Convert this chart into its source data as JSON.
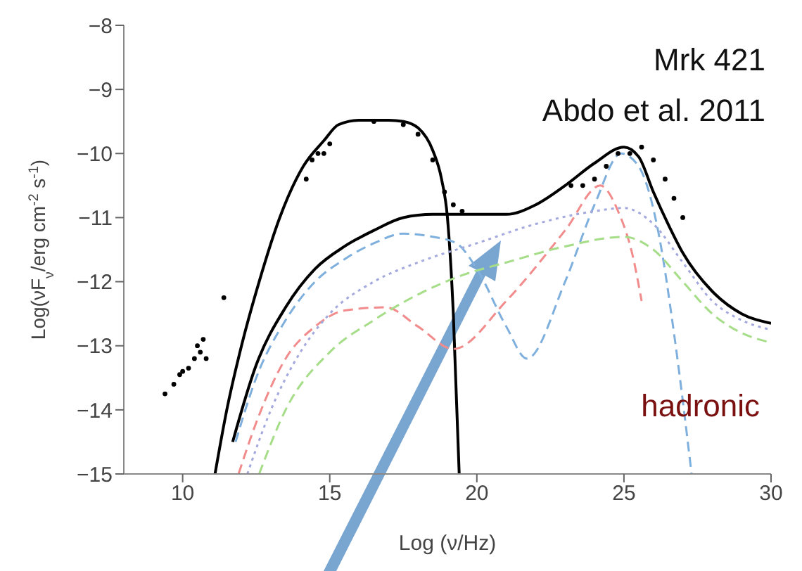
{
  "chart_data": {
    "type": "line",
    "xlabel": "Log (ν/Hz)",
    "ylabel": "Log(νF$_{ν}$/erg cm$^{-2}$ s$^{-1}$)",
    "xlim": [
      8,
      30
    ],
    "ylim": [
      -15,
      -8
    ],
    "xticks": [
      10,
      15,
      20,
      25,
      30
    ],
    "yticks": [
      -15,
      -14,
      -13,
      -12,
      -11,
      -10,
      -9,
      -8
    ],
    "annotations": [
      "Mrk 421",
      "Abdo et al. 2011",
      "hadronic"
    ],
    "series": [
      {
        "color": "#000000",
        "line_style": "solid",
        "x": [
          11.1,
          11.5,
          12,
          12.6,
          13.3,
          14.1,
          14.8,
          15.3,
          16,
          17,
          17.5,
          18,
          18.5,
          18.8,
          19,
          19.2,
          19.4
        ],
        "values": [
          -15,
          -14,
          -13,
          -12,
          -11,
          -10.2,
          -9.8,
          -9.55,
          -9.48,
          -9.48,
          -9.5,
          -9.6,
          -9.95,
          -10.4,
          -11,
          -12.5,
          -15
        ]
      },
      {
        "color": "#000000",
        "line_style": "solid",
        "x": [
          11.7,
          12.5,
          13.5,
          14.5,
          15.5,
          16.5,
          17.5,
          18.5,
          20,
          21,
          22,
          23,
          24,
          25,
          25.5,
          26,
          26.5,
          27,
          28,
          29,
          30
        ],
        "values": [
          -14.5,
          -13.3,
          -12.4,
          -11.8,
          -11.45,
          -11.2,
          -11,
          -10.95,
          -10.95,
          -10.95,
          -10.8,
          -10.5,
          -10.15,
          -9.9,
          -10.05,
          -10.6,
          -11.1,
          -11.55,
          -12.15,
          -12.5,
          -12.65
        ]
      },
      {
        "color": "#7fb0dd",
        "line_style": "dashed",
        "x": [
          11.8,
          12.5,
          13.5,
          14.5,
          15.5,
          16.5,
          17.5,
          18.5,
          19.3,
          20,
          21,
          21.7,
          23,
          24,
          24.9,
          25.5,
          26.2,
          26.7,
          27.3
        ],
        "values": [
          -14.5,
          -13.5,
          -12.6,
          -12,
          -11.65,
          -11.4,
          -11.25,
          -11.3,
          -11.4,
          -11.8,
          -12.7,
          -13.2,
          -12,
          -10.8,
          -10,
          -10.2,
          -11.3,
          -12.8,
          -15
        ]
      },
      {
        "color": "#f28c8c",
        "line_style": "dashed",
        "x": [
          11.9,
          12.5,
          13.5,
          14.5,
          15.5,
          16.9,
          18,
          19.2,
          21,
          23,
          24.2,
          24.8,
          25.3,
          25.6
        ],
        "values": [
          -15,
          -14.2,
          -13.2,
          -12.7,
          -12.45,
          -12.4,
          -12.7,
          -13.05,
          -12.3,
          -11.2,
          -10.5,
          -10.9,
          -11.6,
          -12.3
        ]
      },
      {
        "color": "#a3a8dd",
        "line_style": "dotted",
        "x": [
          12.2,
          13,
          14,
          15,
          16.5,
          18,
          20,
          22,
          24,
          25,
          26,
          27,
          28,
          29,
          30
        ],
        "values": [
          -15,
          -14,
          -13.1,
          -12.5,
          -12,
          -11.7,
          -11.4,
          -11.1,
          -10.9,
          -10.85,
          -11.1,
          -11.7,
          -12.3,
          -12.6,
          -12.75
        ]
      },
      {
        "color": "#a6dd88",
        "line_style": "dashed",
        "x": [
          12.6,
          13.5,
          15,
          16.5,
          18,
          19.5,
          21,
          23,
          25,
          26,
          27,
          28,
          29,
          30
        ],
        "values": [
          -15,
          -14,
          -13.1,
          -12.6,
          -12.2,
          -11.9,
          -11.7,
          -11.45,
          -11.3,
          -11.5,
          -12,
          -12.5,
          -12.8,
          -12.95
        ]
      },
      {
        "type": "scatter",
        "color": "#000000",
        "marker": "circle",
        "x": [
          9.4,
          9.7,
          9.9,
          10,
          10.2,
          10.4,
          10.5,
          10.6,
          10.7,
          10.8,
          11.4,
          14.2,
          14.4,
          14.6,
          14.8,
          15,
          16.5,
          17.5,
          18,
          18.5,
          18.9,
          19.2,
          19.5,
          23.2,
          23.6,
          24,
          24.4,
          24.8,
          25.2,
          25.6,
          26,
          26.4,
          26.7,
          27
        ],
        "values": [
          -13.75,
          -13.6,
          -13.45,
          -13.4,
          -13.35,
          -13.2,
          -13,
          -13.1,
          -12.9,
          -13.2,
          -12.25,
          -10.4,
          -10.1,
          -10,
          -10,
          -9.85,
          -9.5,
          -9.55,
          -9.7,
          -10.1,
          -10.6,
          -10.8,
          -10.9,
          -10.5,
          -10.5,
          -10.4,
          -10.2,
          -10,
          -10,
          -9.9,
          -10.1,
          -10.4,
          -10.7,
          -11
        ]
      }
    ]
  }
}
